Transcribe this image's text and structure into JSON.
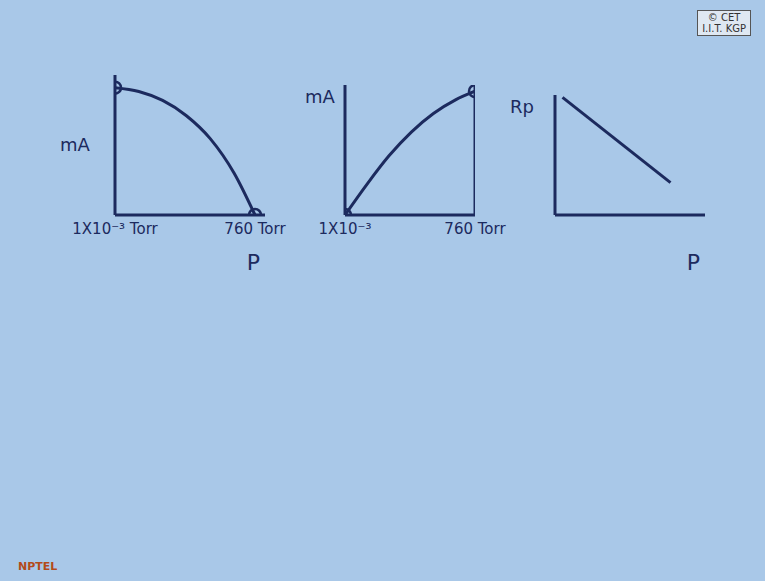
{
  "watermark": [
    "© CET",
    "I.I.T. KGP"
  ],
  "logo": "NPTEL",
  "chart_data": [
    {
      "type": "line",
      "y_label": "mA",
      "x_label": "P",
      "x": [
        0.001,
        0.01,
        0.1,
        1,
        10,
        100,
        760
      ],
      "values": [
        10,
        9.7,
        9,
        7.8,
        6,
        3.3,
        0
      ],
      "xlim": [
        0.001,
        2000
      ],
      "ylim": [
        0,
        11
      ],
      "xticks": [
        {
          "value": 0.001,
          "label": "1X10⁻³ Torr"
        },
        {
          "value": 760,
          "label": "760 Torr"
        }
      ],
      "log": "x",
      "tick_labels": "x",
      "marker": "circle",
      "color": "#1c2a5e"
    },
    {
      "type": "line",
      "y_label": "mA",
      "x": [
        0.001,
        0.01,
        0.1,
        1,
        10,
        100,
        760
      ],
      "values": [
        0,
        2.5,
        4.8,
        6.7,
        8.2,
        9.3,
        10
      ],
      "xlim": [
        0.001,
        760
      ],
      "ylim": [
        0,
        10.5
      ],
      "xticks": [
        {
          "value": 0.001,
          "label": "1X10⁻³"
        },
        {
          "value": 760,
          "label": "760 Torr"
        }
      ],
      "log": "x",
      "tick_labels": "x",
      "marker": "circle",
      "color": "#1c2a5e"
    },
    {
      "type": "line",
      "y_label": "Rp",
      "x_label": "P",
      "x": [
        0.5,
        7.7
      ],
      "values": [
        9.8,
        2.7
      ],
      "xlim": [
        0,
        10
      ],
      "ylim": [
        0,
        10
      ],
      "tick_labels": false,
      "color": "#1c2a5e"
    }
  ]
}
